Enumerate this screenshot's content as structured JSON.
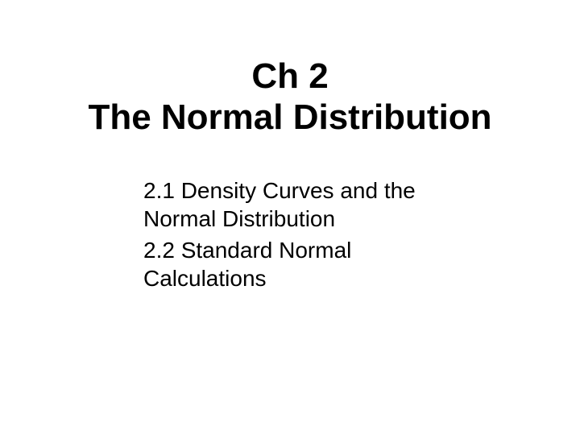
{
  "title": {
    "line1": "Ch 2",
    "line2": "The Normal Distribution",
    "font_size_pt": 44,
    "font_weight": "bold",
    "color": "#000000"
  },
  "subsections": [
    "2.1 Density Curves and the Normal Distribution",
    "2.2 Standard Normal Calculations"
  ],
  "subsection_style": {
    "font_size_pt": 28,
    "font_weight": "normal",
    "color": "#000000"
  },
  "background_color": "#ffffff"
}
